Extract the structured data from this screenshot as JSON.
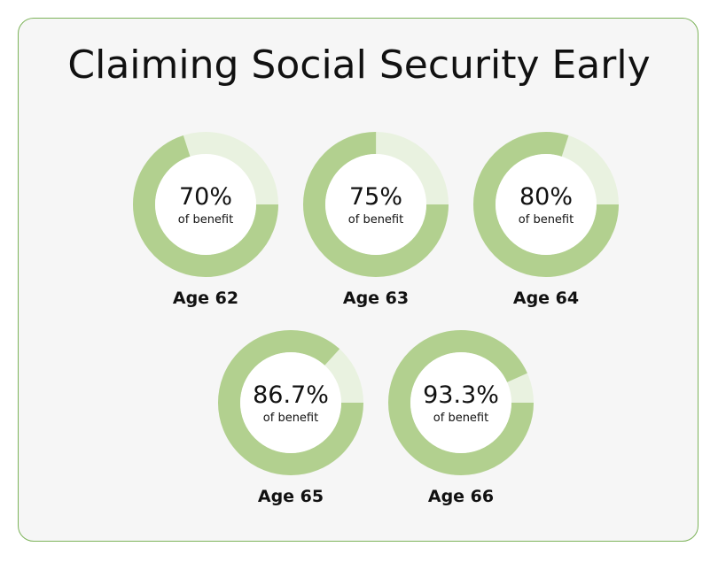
{
  "title": "Claiming Social Security Early",
  "colors": {
    "filled": "#b2d08f",
    "remaining": "#e9f2e0",
    "border": "#7db35a",
    "background": "#f6f6f6"
  },
  "chart_data": {
    "type": "pie",
    "style": "donut",
    "title": "Claiming Social Security Early",
    "categories": [
      "Age 62",
      "Age 63",
      "Age 64",
      "Age 65",
      "Age 66"
    ],
    "values": [
      70,
      75,
      80,
      86.7,
      93.3
    ],
    "value_labels": [
      "70%",
      "75%",
      "80%",
      "86.7%",
      "93.3%"
    ],
    "sublabel": "of benefit",
    "unit": "%"
  }
}
